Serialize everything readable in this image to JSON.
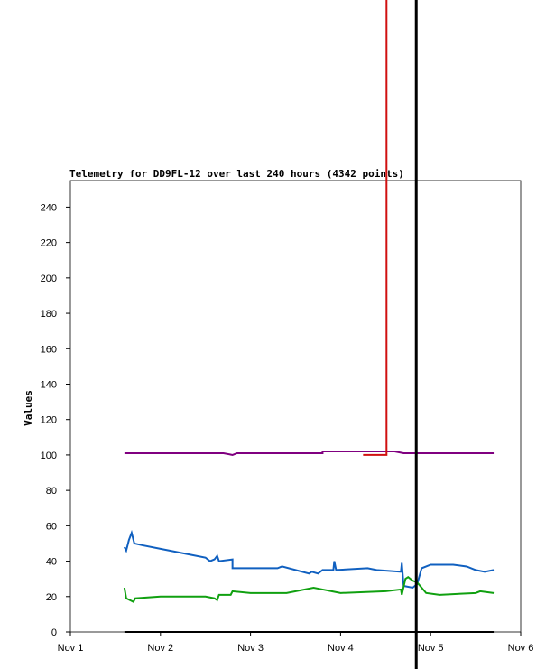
{
  "chart_data": {
    "type": "line",
    "title": "Telemetry for DD9FL-12 over last 240 hours (4342 points)",
    "y_label": "Values",
    "xlim": [
      1,
      6
    ],
    "ylim": [
      0,
      255
    ],
    "xticks": [
      {
        "value": 1,
        "label": "Nov 1"
      },
      {
        "value": 2,
        "label": "Nov 2"
      },
      {
        "value": 3,
        "label": "Nov 3"
      },
      {
        "value": 4,
        "label": "Nov 4"
      },
      {
        "value": 5,
        "label": "Nov 5"
      },
      {
        "value": 6,
        "label": "Nov 6"
      }
    ],
    "yticks": [
      0,
      20,
      40,
      60,
      80,
      100,
      120,
      140,
      160,
      180,
      200,
      220,
      240
    ],
    "vline_x": 4.84,
    "vline_color": "#000000",
    "series": [
      {
        "color": "#800080",
        "x": [
          1.6,
          2.7,
          2.8,
          2.85,
          3.8,
          3.8,
          4.6,
          4.7,
          5.7
        ],
        "values": [
          101,
          101,
          100,
          101,
          101,
          102,
          102,
          101,
          101
        ]
      },
      {
        "color": "#d01010",
        "x": [
          4.25,
          4.51,
          4.51
        ],
        "values": [
          100,
          100,
          357
        ]
      },
      {
        "color": "#1060c0",
        "x": [
          1.6,
          1.62,
          1.65,
          1.68,
          1.71,
          1.8,
          2.0,
          2.3,
          2.5,
          2.55,
          2.6,
          2.63,
          2.65,
          2.8,
          2.8,
          3.0,
          3.3,
          3.35,
          3.5,
          3.65,
          3.68,
          3.75,
          3.8,
          3.92,
          3.93,
          3.95,
          4.3,
          4.4,
          4.67,
          4.68,
          4.7,
          4.8,
          4.85,
          4.9,
          5.0,
          5.25,
          5.4,
          5.5,
          5.6,
          5.7
        ],
        "values": [
          48,
          46,
          52,
          56,
          50,
          49,
          47,
          44,
          42,
          40,
          41,
          43,
          40,
          41,
          36,
          36,
          36,
          37,
          35,
          33,
          34,
          33,
          35,
          35,
          40,
          35,
          36,
          35,
          34,
          39,
          26,
          25,
          27,
          36,
          38,
          38,
          37,
          35,
          34,
          35
        ]
      },
      {
        "color": "#10a010",
        "x": [
          1.6,
          1.62,
          1.7,
          1.72,
          2.0,
          2.5,
          2.6,
          2.63,
          2.65,
          2.78,
          2.8,
          3.0,
          3.2,
          3.4,
          3.7,
          3.8,
          3.9,
          4.0,
          4.5,
          4.67,
          4.68,
          4.72,
          4.75,
          4.8,
          4.85,
          4.95,
          5.1,
          5.5,
          5.55,
          5.7
        ],
        "values": [
          25,
          19,
          17,
          19,
          20,
          20,
          19,
          18,
          21,
          21,
          23,
          22,
          22,
          22,
          25,
          24,
          23,
          22,
          23,
          24,
          21,
          30,
          31,
          29,
          28,
          22,
          21,
          22,
          23,
          22
        ]
      },
      {
        "color": "#000000",
        "x": [
          1.6,
          5.7
        ],
        "values": [
          0,
          0
        ]
      }
    ]
  }
}
